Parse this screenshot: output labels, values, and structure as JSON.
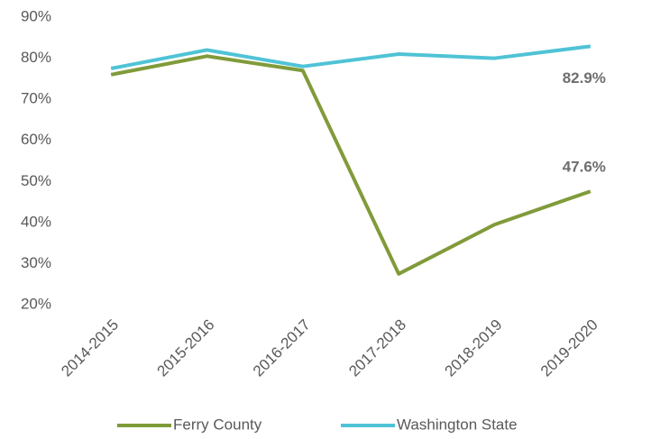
{
  "chart_data": {
    "type": "line",
    "categories": [
      "2014-2015",
      "2015-2016",
      "2016-2017",
      "2017-2018",
      "2018-2019",
      "2019-2020"
    ],
    "series": [
      {
        "name": "Ferry County",
        "color": "#809b3a",
        "values": [
          76,
          80.5,
          77,
          27.5,
          39.5,
          47.6
        ],
        "value_labels": [
          null,
          null,
          null,
          null,
          null,
          "47.6%"
        ]
      },
      {
        "name": "Washington State",
        "color": "#4fc3d6",
        "values": [
          77.5,
          82,
          78,
          81,
          80,
          82.9
        ],
        "value_labels": [
          null,
          null,
          null,
          null,
          null,
          "82.9%"
        ]
      }
    ],
    "ylim": [
      20,
      90
    ],
    "yticks": [
      {
        "value": 20,
        "label": "20%"
      },
      {
        "value": 30,
        "label": "30%"
      },
      {
        "value": 40,
        "label": "40%"
      },
      {
        "value": 50,
        "label": "50%"
      },
      {
        "value": 60,
        "label": "60%"
      },
      {
        "value": 70,
        "label": "70%"
      },
      {
        "value": 80,
        "label": "80%"
      },
      {
        "value": 90,
        "label": "90%"
      }
    ],
    "grid": false,
    "legend": "bottom"
  }
}
